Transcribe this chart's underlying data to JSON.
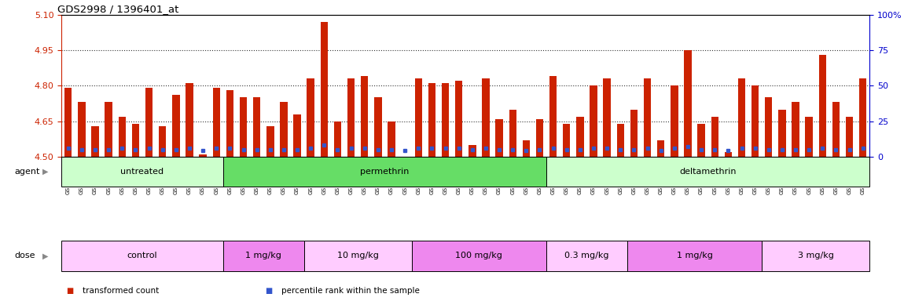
{
  "title": "GDS2998 / 1396401_at",
  "ylim": [
    4.5,
    5.1
  ],
  "yticks": [
    4.5,
    4.65,
    4.8,
    4.95,
    5.1
  ],
  "right_yticks_vals": [
    0,
    25,
    50,
    75,
    100
  ],
  "right_yticks_labels": [
    "0",
    "25",
    "50",
    "75",
    "100%"
  ],
  "right_ylim": [
    0,
    100
  ],
  "bar_color": "#cc2200",
  "dot_color": "#3355cc",
  "samples": [
    "GSM190915",
    "GSM195231",
    "GSM195232",
    "GSM195233",
    "GSM195234",
    "GSM195235",
    "GSM195236",
    "GSM195237",
    "GSM195238",
    "GSM195239",
    "GSM195240",
    "GSM195241",
    "GSM195242",
    "GSM195243",
    "GSM195248",
    "GSM195249",
    "GSM195250",
    "GSM195251",
    "GSM195252",
    "GSM195253",
    "GSM195254",
    "GSM195255",
    "GSM195256",
    "GSM195257",
    "GSM195258",
    "GSM195259",
    "GSM195260",
    "GSM195261",
    "GSM195263",
    "GSM195264",
    "GSM195265",
    "GSM195266",
    "GSM195267",
    "GSM195269",
    "GSM195270",
    "GSM195272",
    "GSM195276",
    "GSM195278",
    "GSM195280",
    "GSM195281",
    "GSM195283",
    "GSM195285",
    "GSM195286",
    "GSM195288",
    "GSM195289",
    "GSM195290",
    "GSM195291",
    "GSM195292",
    "GSM195293",
    "GSM195295",
    "GSM195296",
    "GSM195297",
    "GSM195298",
    "GSM195299",
    "GSM195300",
    "GSM195301",
    "GSM195302",
    "GSM195303",
    "GSM195304",
    "GSM195305"
  ],
  "transformed_counts": [
    4.79,
    4.73,
    4.63,
    4.73,
    4.67,
    4.64,
    4.79,
    4.63,
    4.76,
    4.81,
    4.51,
    4.79,
    4.78,
    4.75,
    4.75,
    4.63,
    4.73,
    4.68,
    4.83,
    5.07,
    4.65,
    4.83,
    4.84,
    4.75,
    4.65,
    4.44,
    4.83,
    4.81,
    4.81,
    4.82,
    4.55,
    4.83,
    4.66,
    4.7,
    4.57,
    4.66,
    4.84,
    4.64,
    4.67,
    4.8,
    4.83,
    4.64,
    4.7,
    4.83,
    4.57,
    4.8,
    4.95,
    4.64,
    4.67,
    4.52,
    4.83,
    4.8,
    4.75,
    4.7,
    4.73,
    4.67,
    4.93,
    4.73,
    4.67,
    4.83
  ],
  "percentile_ranks": [
    6,
    5,
    5,
    5,
    6,
    5,
    6,
    5,
    5,
    6,
    4,
    6,
    6,
    5,
    5,
    5,
    5,
    5,
    6,
    8,
    5,
    6,
    6,
    5,
    5,
    4,
    6,
    6,
    6,
    6,
    5,
    6,
    5,
    5,
    4,
    5,
    6,
    5,
    5,
    6,
    6,
    5,
    5,
    6,
    4,
    6,
    7,
    5,
    5,
    4,
    6,
    6,
    5,
    5,
    5,
    5,
    6,
    5,
    5,
    6
  ],
  "agent_groups": [
    {
      "label": "untreated",
      "start": 0,
      "end": 12,
      "color": "#ccffcc"
    },
    {
      "label": "permethrin",
      "start": 12,
      "end": 36,
      "color": "#66dd66"
    },
    {
      "label": "deltamethrin",
      "start": 36,
      "end": 60,
      "color": "#ccffcc"
    }
  ],
  "dose_groups": [
    {
      "label": "control",
      "start": 0,
      "end": 12,
      "color": "#ffccff"
    },
    {
      "label": "1 mg/kg",
      "start": 12,
      "end": 18,
      "color": "#ee88ee"
    },
    {
      "label": "10 mg/kg",
      "start": 18,
      "end": 26,
      "color": "#ffccff"
    },
    {
      "label": "100 mg/kg",
      "start": 26,
      "end": 36,
      "color": "#ee88ee"
    },
    {
      "label": "0.3 mg/kg",
      "start": 36,
      "end": 42,
      "color": "#ffccff"
    },
    {
      "label": "1 mg/kg",
      "start": 42,
      "end": 52,
      "color": "#ee88ee"
    },
    {
      "label": "3 mg/kg",
      "start": 52,
      "end": 60,
      "color": "#ffccff"
    }
  ],
  "legend_items": [
    {
      "label": "transformed count",
      "color": "#cc2200",
      "marker": "s"
    },
    {
      "label": "percentile rank within the sample",
      "color": "#3355cc",
      "marker": "s"
    }
  ],
  "agent_label": "agent",
  "dose_label": "dose",
  "left_axis_color": "#cc2200",
  "right_axis_color": "#0000cc",
  "gridline_color": "#333333",
  "gridline_y": [
    4.65,
    4.8,
    4.95
  ]
}
